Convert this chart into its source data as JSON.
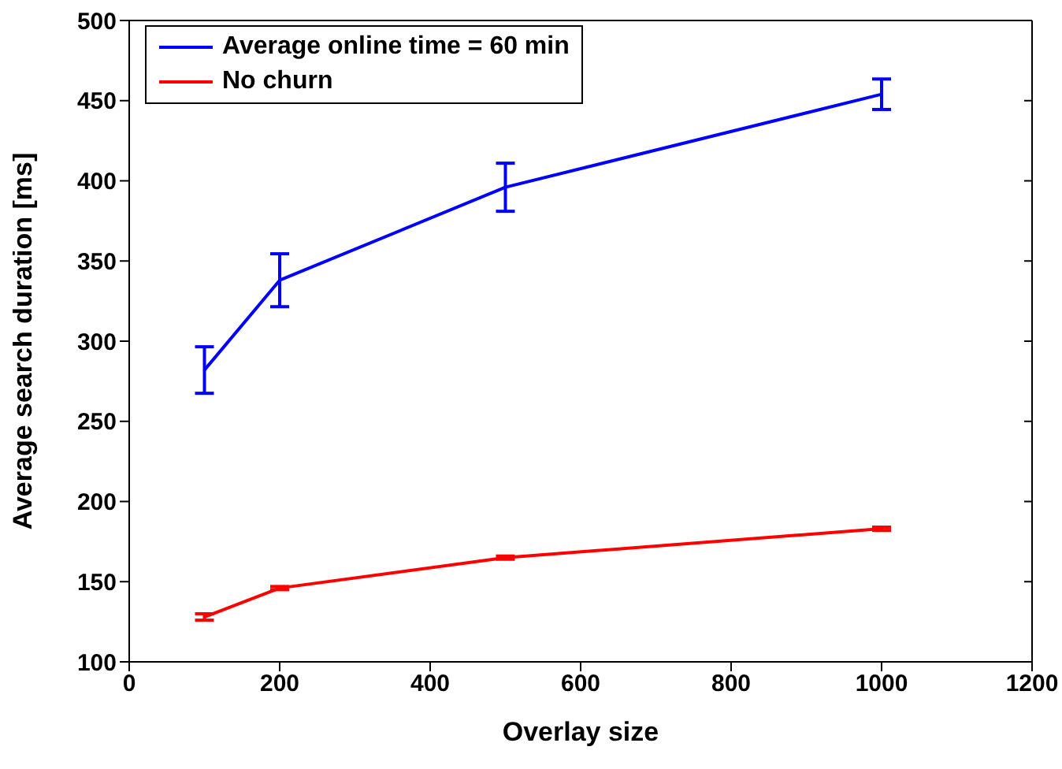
{
  "chart_data": {
    "type": "line",
    "xlabel": "Overlay size",
    "ylabel": "Average search duration [ms]",
    "x": [
      100,
      200,
      500,
      1000
    ],
    "series": [
      {
        "name": "Average online time = 60 min",
        "color": "#0000ff",
        "values": [
          282,
          338,
          396,
          454
        ],
        "errors": [
          14.5,
          16.5,
          15,
          9.5
        ]
      },
      {
        "name": "No churn",
        "color": "#ff0000",
        "values": [
          128,
          146,
          165,
          183
        ],
        "errors": [
          2,
          1,
          1,
          1
        ]
      }
    ],
    "xlim": [
      0,
      1200
    ],
    "xticks": [
      0,
      200,
      400,
      600,
      800,
      1000,
      1200
    ],
    "ylim": [
      100,
      500
    ],
    "yticks": [
      100,
      150,
      200,
      250,
      300,
      350,
      400,
      450,
      500
    ],
    "legend": "top left",
    "marker": "none",
    "line_style": "solid"
  }
}
